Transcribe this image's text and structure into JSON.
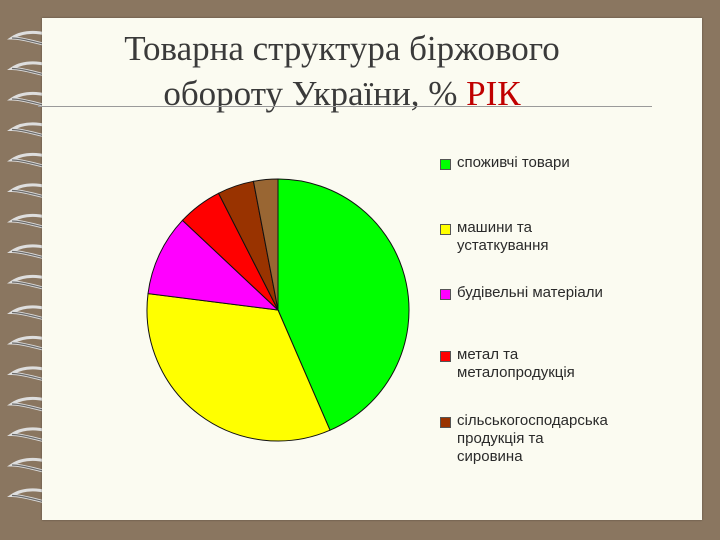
{
  "title": {
    "line1": "Товарна структура біржового",
    "line2_main": "обороту України, % ",
    "line2_accent": "РІК"
  },
  "chart_data": {
    "type": "pie",
    "title": "Товарна структура біржового обороту України, % РІК",
    "legend_position": "right",
    "series": [
      {
        "name": "споживчі товари",
        "value": 43.5,
        "color": "#00ff00"
      },
      {
        "name": "машини та устаткування",
        "value": 33.5,
        "color": "#ffff00"
      },
      {
        "name": "будівельні матеріали",
        "value": 10,
        "color": "#ff00ff"
      },
      {
        "name": "метал та металопродукція",
        "value": 5.5,
        "color": "#ff0000"
      },
      {
        "name": "сільськогосподарська продукція та сировина",
        "value": 4.5,
        "color": "#993300"
      },
      {
        "name": "",
        "value": 3,
        "color": "#996633"
      }
    ]
  },
  "legend": [
    {
      "label": "споживчі товари",
      "color": "#00ff00"
    },
    {
      "label": "машини та\nустаткування",
      "color": "#ffff00"
    },
    {
      "label": "будівельні матеріали",
      "color": "#ff00ff"
    },
    {
      "label": "метал та\nметалопродукція",
      "color": "#ff0000"
    },
    {
      "label": "сільськогосподарська\nпродукція та\nсировина",
      "color": "#993300"
    }
  ]
}
